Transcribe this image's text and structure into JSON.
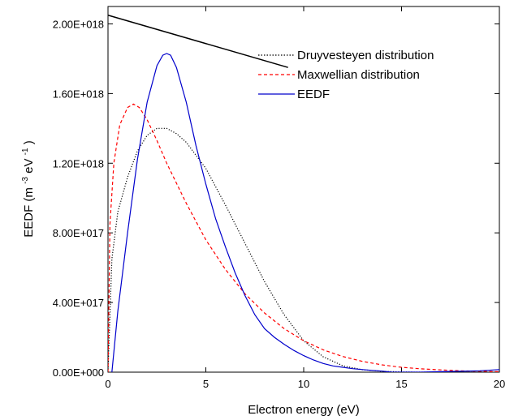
{
  "chart_data": {
    "type": "line",
    "title": "",
    "xlabel": "Electron energy (eV)",
    "ylabel_parts": {
      "main": "EEDF (m",
      "sup1": "-3",
      "mid": "eV",
      "sup2": "-1",
      "end": ")"
    },
    "xlim": [
      0,
      20
    ],
    "ylim": [
      0,
      2.1e+18
    ],
    "x_ticks": [
      0,
      5,
      10,
      15,
      20
    ],
    "x_tick_labels": [
      "0",
      "5",
      "10",
      "15",
      "20"
    ],
    "y_ticks": [
      0,
      4e+17,
      8e+17,
      1.2e+18,
      1.6e+18,
      2e+18
    ],
    "y_tick_labels": [
      "0.00E+000",
      "4.00E+017",
      "8.00E+017",
      "1.20E+018",
      "1.60E+018",
      "2.00E+018"
    ],
    "legend_position": "top-right",
    "grid": false,
    "series": [
      {
        "name": "Druyvesteyen distribution",
        "style": "dotted",
        "color": "#000000",
        "x": [
          0,
          0.2,
          0.5,
          1,
          1.5,
          2,
          2.5,
          3,
          3.5,
          4,
          5,
          6,
          7,
          8,
          9,
          10,
          11,
          12,
          13,
          14,
          15,
          16,
          20
        ],
        "y": [
          0,
          6.5e+17,
          9.2e+17,
          1.12e+18,
          1.27e+18,
          1.36e+18,
          1.4e+18,
          1.4e+18,
          1.37e+18,
          1.32e+18,
          1.17e+18,
          9.6e+17,
          7.4e+17,
          5.2e+17,
          3.3e+17,
          1.8e+17,
          8.8e+16,
          3.7e+16,
          1.4e+16,
          5000000000000000.0,
          1000000000000000.0,
          0,
          0
        ]
      },
      {
        "name": "Maxwellian distribution",
        "style": "dashed",
        "color": "#ff0000",
        "x": [
          0,
          0.1,
          0.3,
          0.6,
          1,
          1.3,
          1.6,
          2,
          2.5,
          3,
          4,
          5,
          6,
          7,
          8,
          9,
          10,
          11,
          12,
          13,
          14,
          15,
          16,
          17,
          18,
          19,
          20
        ],
        "y": [
          0,
          8.5e+17,
          1.2e+18,
          1.42e+18,
          1.52e+18,
          1.54e+18,
          1.52e+18,
          1.45e+18,
          1.33e+18,
          1.2e+18,
          9.7e+17,
          7.6e+17,
          5.9e+17,
          4.5e+17,
          3.4e+17,
          2.5e+17,
          1.8e+17,
          1.28e+17,
          9e+16,
          6.2e+16,
          4.2e+16,
          2.8e+16,
          1.9e+16,
          1.3e+16,
          8000000000000000.0,
          5000000000000000.0,
          3000000000000000.0
        ]
      },
      {
        "name": "EEDF",
        "style": "solid",
        "color": "#0000cc",
        "x": [
          0.2,
          0.5,
          1,
          1.5,
          2,
          2.5,
          2.8,
          3,
          3.2,
          3.5,
          4,
          4.5,
          5,
          5.5,
          6,
          6.5,
          7,
          7.5,
          8,
          8.5,
          9,
          9.5,
          10,
          10.5,
          11,
          11.5,
          12,
          12.5,
          13,
          13.5,
          14,
          14.5,
          15,
          16,
          17,
          18,
          19,
          20
        ],
        "y": [
          0,
          3.5e+17,
          8e+17,
          1.22e+18,
          1.55e+18,
          1.76e+18,
          1.82e+18,
          1.83e+18,
          1.82e+18,
          1.75e+18,
          1.55e+18,
          1.3e+18,
          1.08e+18,
          8.8e+17,
          7.2e+17,
          5.7e+17,
          4.4e+17,
          3.3e+17,
          2.5e+17,
          2e+17,
          1.6e+17,
          1.25e+17,
          9.5e+16,
          7e+16,
          5e+16,
          3.6e+16,
          2.8e+16,
          2e+16,
          1.5e+16,
          1e+16,
          6000000000000000.0,
          0,
          0,
          0,
          3000000000000000.0,
          5000000000000000.0,
          8000000000000000.0,
          1.5e+16
        ]
      }
    ],
    "annotation_line": {
      "x": [
        0,
        9.2
      ],
      "y": [
        2.05e+18,
        1.75e+18
      ],
      "color": "#000000"
    }
  }
}
